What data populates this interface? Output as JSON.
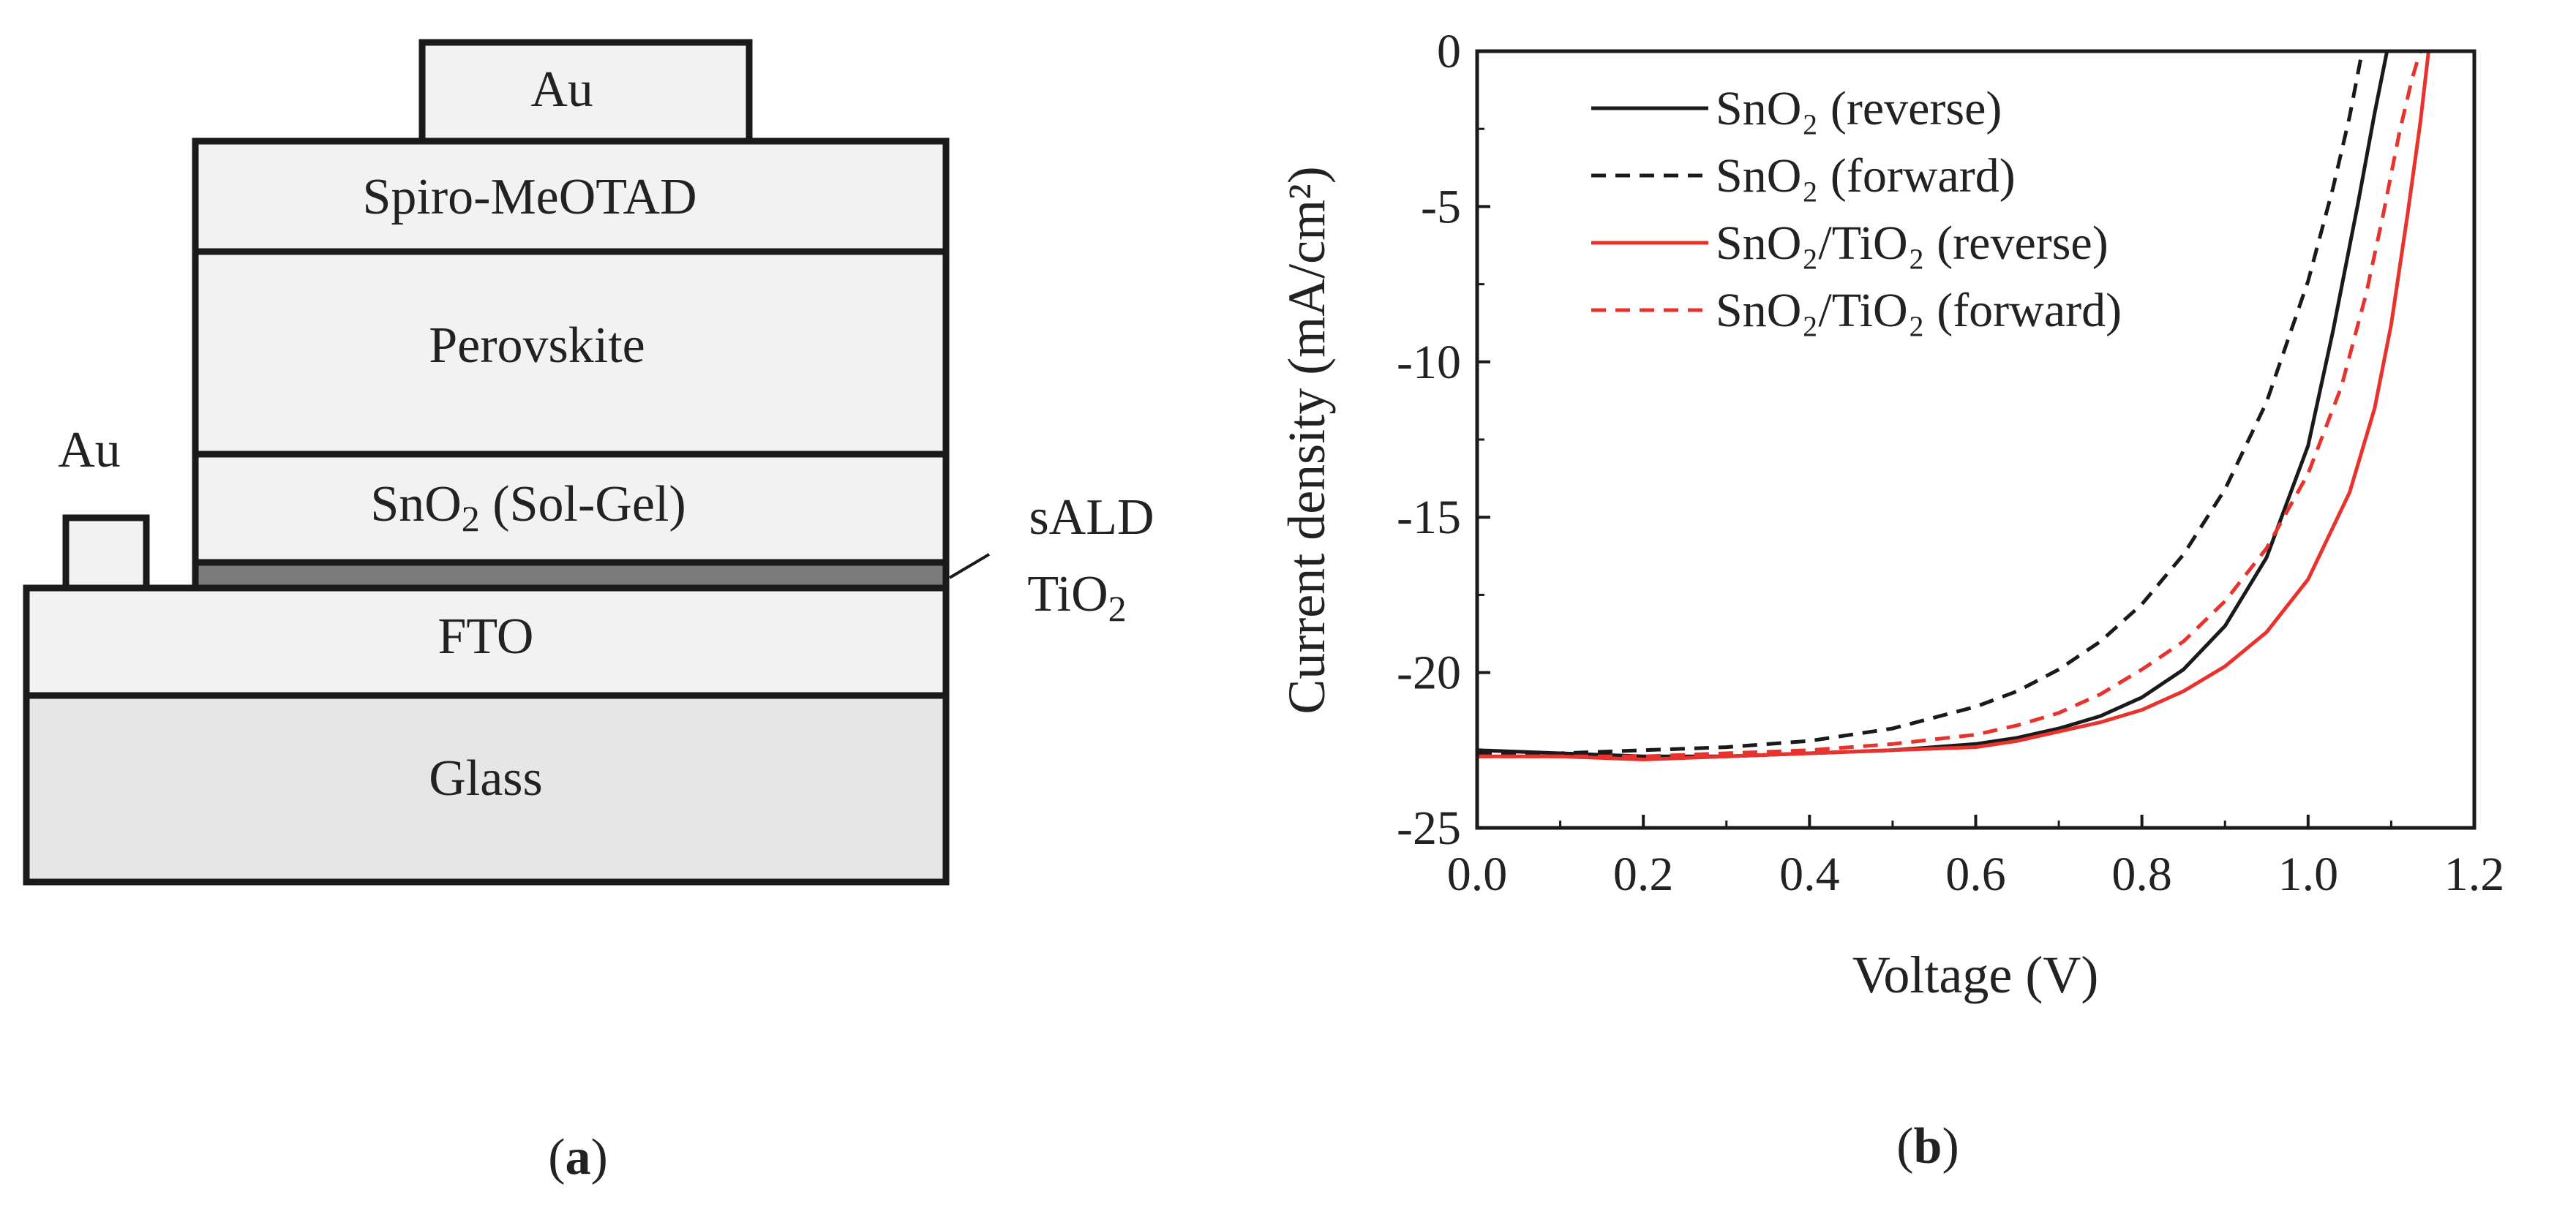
{
  "panel_a": {
    "panel_label": "a",
    "layers": {
      "au_top": "Au",
      "spiro": "Spiro-MeOTAD",
      "perovskite": "Perovskite",
      "sno2_base": "SnO",
      "sno2_sub": "2",
      "sno2_suffix": " (Sol-Gel)",
      "fto": "FTO",
      "glass": "Glass",
      "au_side": "Au"
    },
    "tio2_label_line1": "sALD",
    "tio2_label_line2_base": "TiO",
    "tio2_label_line2_sub": "2",
    "colors": {
      "layer_fill": "#f2f2f2",
      "glass_fill": "#e6e6e6",
      "tio2_fill": "#7a7a7a",
      "stroke": "#1a1a1a"
    }
  },
  "chart_data": {
    "type": "line",
    "panel_label": "b",
    "xlabel": "Voltage (V)",
    "ylabel": "Current density (mA/cm²)",
    "xlim": [
      0.0,
      1.2
    ],
    "ylim": [
      -25,
      0
    ],
    "xticks": [
      0.0,
      0.2,
      0.4,
      0.6,
      0.8,
      1.0,
      1.2
    ],
    "xtick_labels": [
      "0.0",
      "0.2",
      "0.4",
      "0.6",
      "0.8",
      "1.0",
      "1.2"
    ],
    "yticks": [
      0,
      -5,
      -10,
      -15,
      -20,
      -25
    ],
    "ytick_labels": [
      "0",
      "-5",
      "-10",
      "-15",
      "-20",
      "-25"
    ],
    "grid": false,
    "legend_position": "top-left",
    "series": [
      {
        "name": "SnO₂ (reverse)",
        "color": "#1a1a1a",
        "dash": "solid",
        "x": [
          0.0,
          0.1,
          0.2,
          0.3,
          0.4,
          0.5,
          0.6,
          0.65,
          0.7,
          0.75,
          0.8,
          0.85,
          0.9,
          0.95,
          1.0,
          1.03,
          1.06,
          1.08,
          1.095
        ],
        "y": [
          -22.5,
          -22.6,
          -22.7,
          -22.7,
          -22.6,
          -22.5,
          -22.3,
          -22.1,
          -21.8,
          -21.4,
          -20.8,
          -19.9,
          -18.5,
          -16.3,
          -12.7,
          -9.0,
          -4.9,
          -2.0,
          0.0
        ]
      },
      {
        "name": "SnO₂ (forward)",
        "color": "#1a1a1a",
        "dash": "dashed",
        "x": [
          0.0,
          0.1,
          0.2,
          0.3,
          0.4,
          0.5,
          0.6,
          0.65,
          0.7,
          0.75,
          0.8,
          0.85,
          0.9,
          0.95,
          1.0,
          1.03,
          1.05,
          1.065
        ],
        "y": [
          -22.6,
          -22.6,
          -22.5,
          -22.4,
          -22.2,
          -21.8,
          -21.1,
          -20.6,
          -19.9,
          -19.0,
          -17.8,
          -16.2,
          -14.1,
          -11.3,
          -7.4,
          -4.4,
          -2.1,
          0.0
        ]
      },
      {
        "name": "SnO₂/TiO₂ (reverse)",
        "color": "#e8322d",
        "dash": "solid",
        "x": [
          0.0,
          0.1,
          0.2,
          0.3,
          0.4,
          0.5,
          0.6,
          0.65,
          0.7,
          0.75,
          0.8,
          0.85,
          0.9,
          0.95,
          1.0,
          1.05,
          1.08,
          1.1,
          1.12,
          1.135,
          1.145
        ],
        "y": [
          -22.7,
          -22.7,
          -22.8,
          -22.7,
          -22.6,
          -22.5,
          -22.4,
          -22.2,
          -21.9,
          -21.6,
          -21.2,
          -20.6,
          -19.8,
          -18.7,
          -17.0,
          -14.2,
          -11.5,
          -8.8,
          -5.2,
          -2.3,
          0.0
        ]
      },
      {
        "name": "SnO₂/TiO₂ (forward)",
        "color": "#e8322d",
        "dash": "dashed",
        "x": [
          0.0,
          0.1,
          0.2,
          0.3,
          0.4,
          0.5,
          0.6,
          0.65,
          0.7,
          0.75,
          0.8,
          0.85,
          0.9,
          0.95,
          1.0,
          1.04,
          1.07,
          1.09,
          1.11,
          1.125,
          1.135
        ],
        "y": [
          -22.7,
          -22.7,
          -22.7,
          -22.6,
          -22.5,
          -22.3,
          -22.0,
          -21.7,
          -21.3,
          -20.7,
          -19.9,
          -19.0,
          -17.7,
          -16.0,
          -13.6,
          -10.8,
          -7.8,
          -5.3,
          -2.6,
          -0.9,
          0.0
        ]
      }
    ]
  }
}
